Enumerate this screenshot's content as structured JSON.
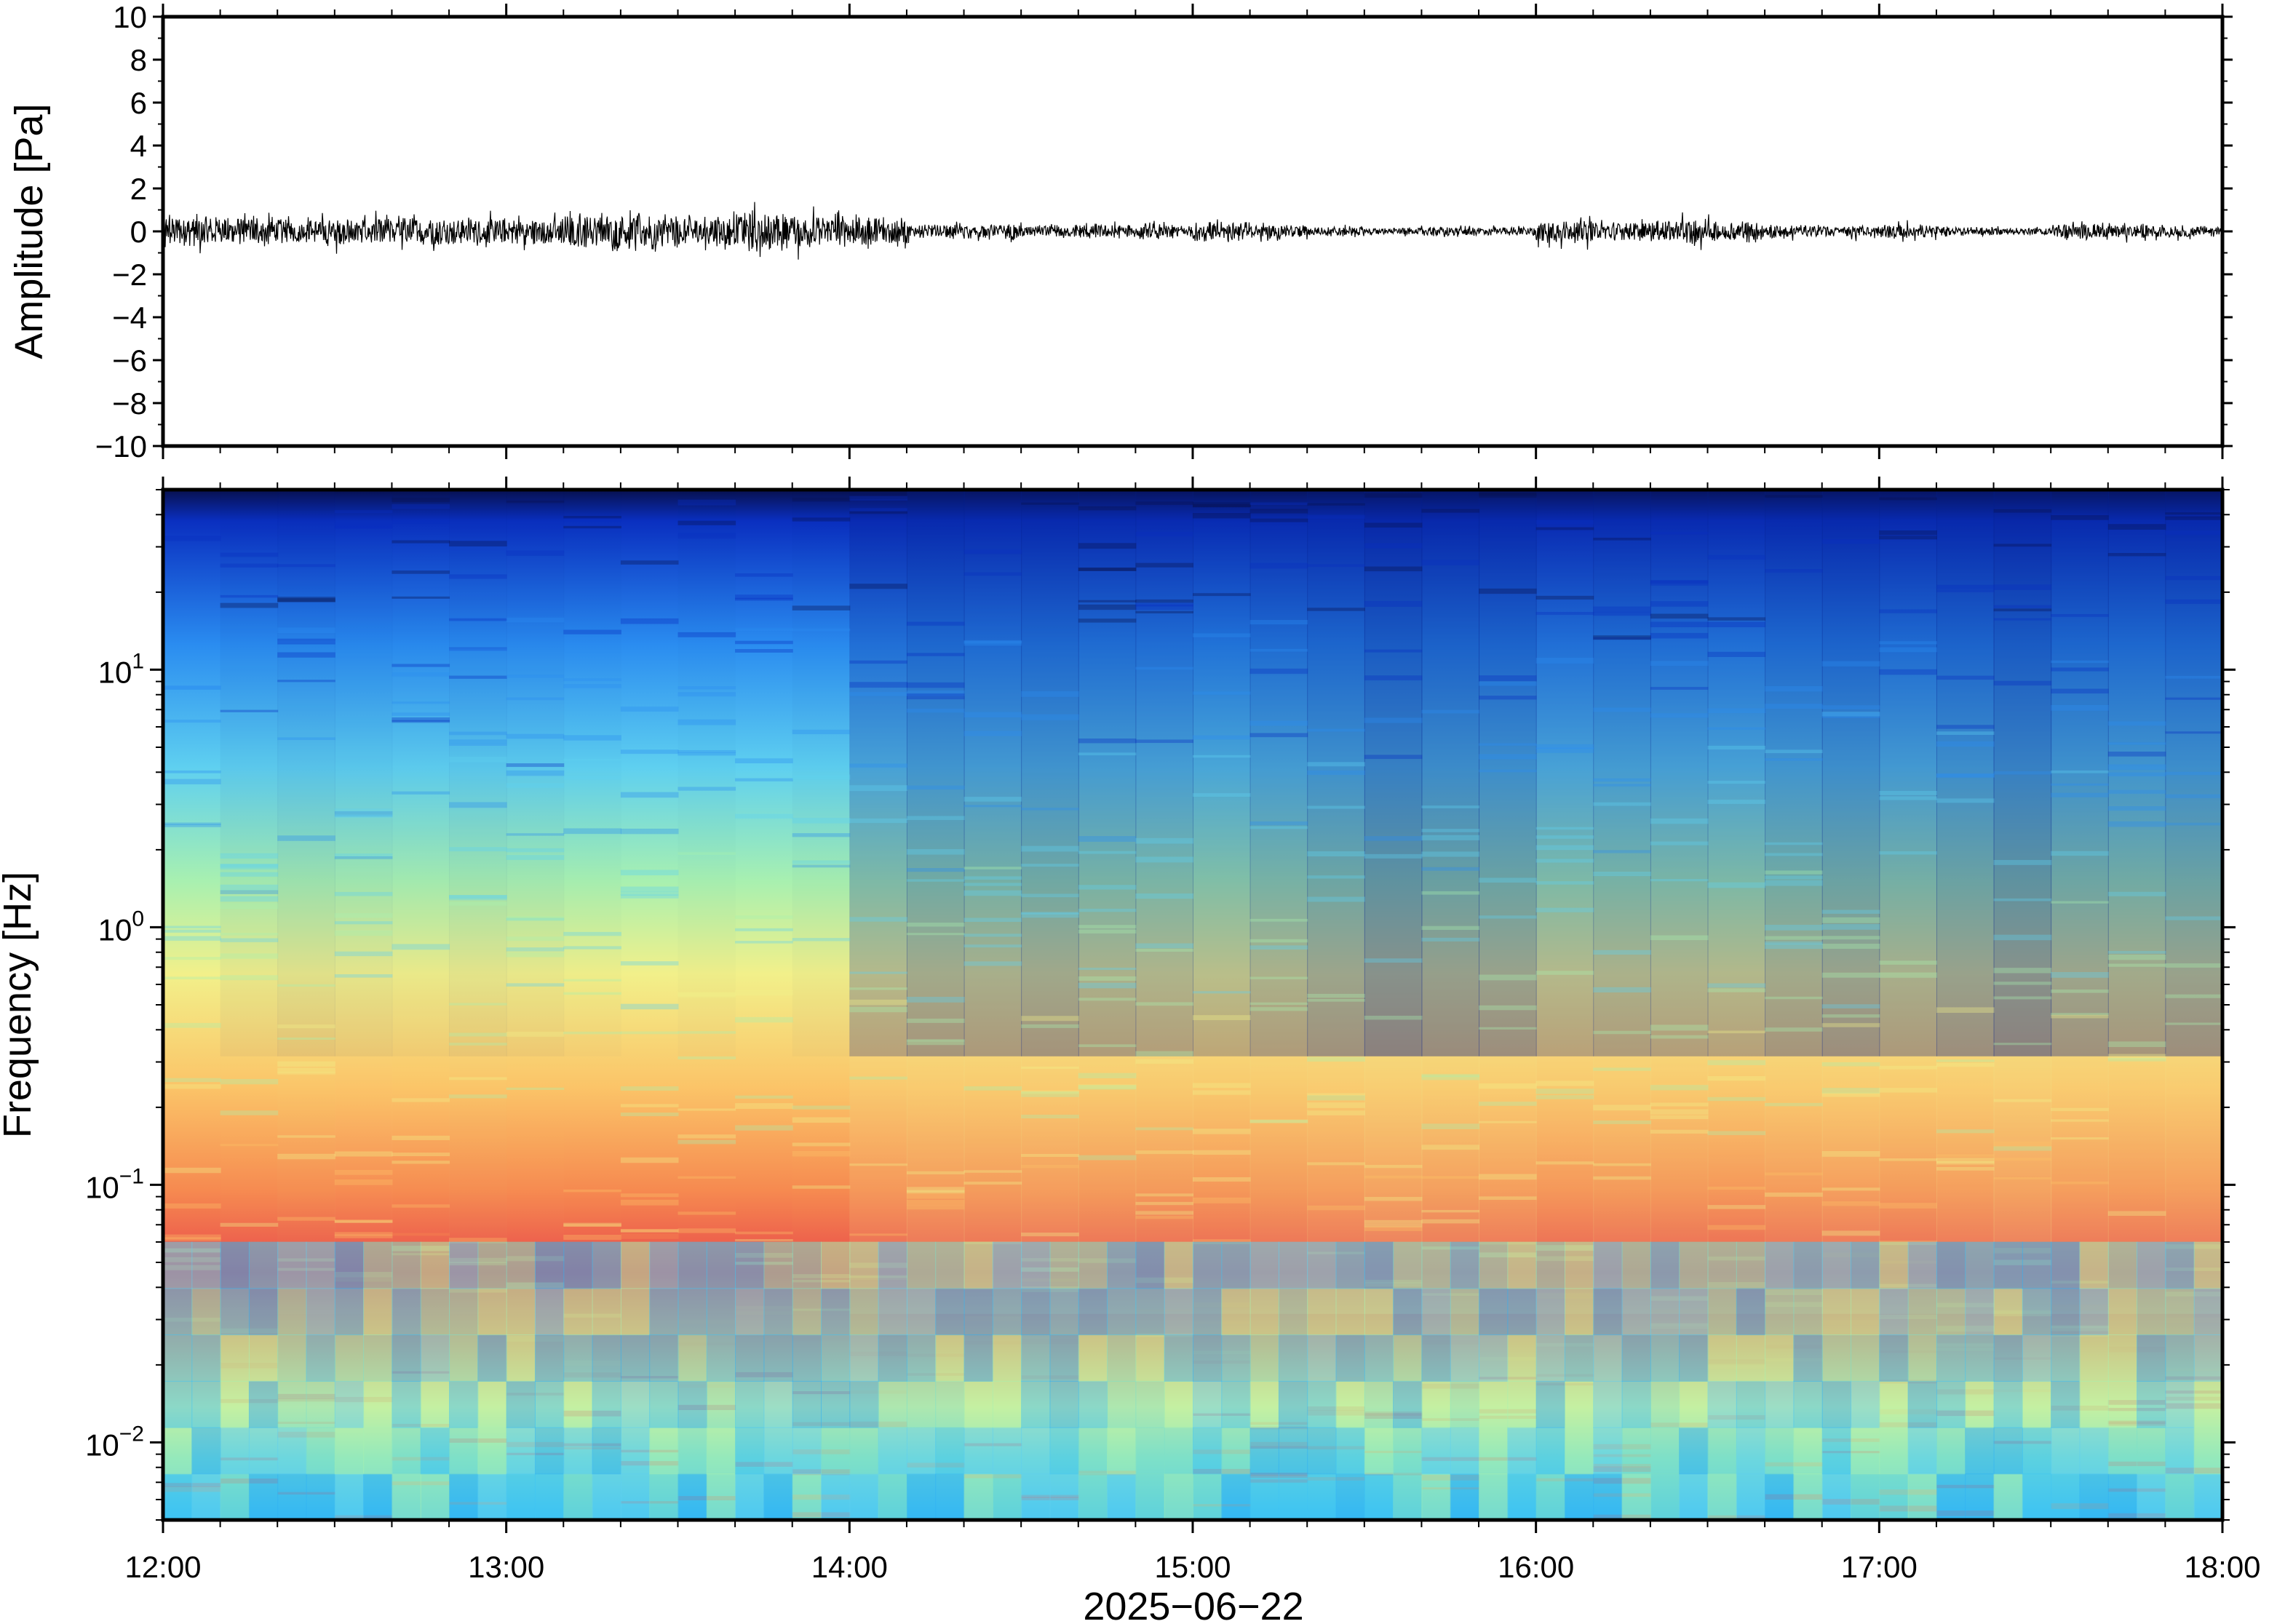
{
  "chart_data": [
    {
      "type": "line",
      "title": "",
      "ylabel": "Amplitude [Pa]",
      "xlabel": "",
      "ylim": [
        -10,
        10
      ],
      "yticks": [
        10,
        8,
        6,
        4,
        2,
        0,
        -2,
        -4,
        -6,
        -8,
        -10
      ],
      "ytick_labels": [
        "10",
        "8",
        "6",
        "4",
        "2",
        "0",
        "−2",
        "−4",
        "−6",
        "−8",
        "−10"
      ],
      "xlim": [
        "2025-06-22 12:00",
        "2025-06-22 18:00"
      ],
      "grid": false,
      "series_color": "#000000",
      "envelope": {
        "note_type": "approximate peak amplitude per 10-minute block",
        "time": [
          "12:00",
          "12:10",
          "12:20",
          "12:30",
          "12:40",
          "12:50",
          "13:00",
          "13:10",
          "13:20",
          "13:30",
          "13:40",
          "13:50",
          "14:00",
          "14:10",
          "14:20",
          "14:30",
          "14:40",
          "14:50",
          "15:00",
          "15:10",
          "15:20",
          "15:30",
          "15:40",
          "15:50",
          "16:00",
          "16:10",
          "16:20",
          "16:30",
          "16:40",
          "16:50",
          "17:00",
          "17:10",
          "17:20",
          "17:30",
          "17:40",
          "17:50"
        ],
        "peak": [
          1.4,
          1.3,
          1.1,
          1.2,
          1.3,
          1.1,
          1.2,
          1.5,
          1.5,
          1.4,
          1.7,
          1.5,
          1.3,
          0.6,
          0.6,
          0.5,
          0.6,
          0.6,
          0.9,
          0.6,
          0.4,
          0.3,
          0.4,
          0.4,
          1.1,
          0.8,
          1.0,
          0.9,
          0.6,
          0.5,
          0.6,
          0.4,
          0.3,
          0.7,
          0.6,
          0.5
        ]
      }
    },
    {
      "type": "heatmap",
      "title": "",
      "ylabel": "Frequency [Hz]",
      "xlabel": "2025−06−22",
      "xlim": [
        "2025-06-22 12:00",
        "2025-06-22 18:00"
      ],
      "xtick_labels": [
        "12:00",
        "13:00",
        "14:00",
        "15:00",
        "16:00",
        "17:00",
        "18:00"
      ],
      "yscale": "log",
      "ylim": [
        0.005,
        50
      ],
      "yticks": [
        0.01,
        0.1,
        1,
        10
      ],
      "ytick_labels": [
        {
          "base": "10",
          "exp": "−2"
        },
        {
          "base": "10",
          "exp": "−1"
        },
        {
          "base": "10",
          "exp": "0"
        },
        {
          "base": "10",
          "exp": "1"
        }
      ],
      "colormap": [
        "#08104e",
        "#0a2fc0",
        "#2a8cf0",
        "#5fd0f0",
        "#a8f0b0",
        "#f2f08a",
        "#fbc468",
        "#f68a50",
        "#e8484a"
      ],
      "grid": false,
      "transition_time": "14:03",
      "time_blocks": [
        "12:00",
        "12:10",
        "12:20",
        "12:30",
        "12:40",
        "12:50",
        "13:00",
        "13:10",
        "13:20",
        "13:30",
        "13:40",
        "13:50",
        "14:00",
        "14:10",
        "14:20",
        "14:30",
        "14:40",
        "14:50",
        "15:00",
        "15:10",
        "15:20",
        "15:30",
        "15:40",
        "15:50",
        "16:00",
        "16:10",
        "16:20",
        "16:30",
        "16:40",
        "16:50",
        "17:00",
        "17:10",
        "17:20",
        "17:30",
        "17:40",
        "17:50"
      ],
      "relative_power": [
        0.92,
        0.85,
        0.8,
        0.83,
        0.86,
        0.82,
        0.85,
        0.88,
        0.9,
        0.88,
        0.9,
        0.87,
        0.55,
        0.45,
        0.48,
        0.44,
        0.5,
        0.52,
        0.58,
        0.5,
        0.42,
        0.3,
        0.38,
        0.4,
        0.55,
        0.5,
        0.52,
        0.54,
        0.45,
        0.4,
        0.48,
        0.4,
        0.3,
        0.42,
        0.45,
        0.4
      ]
    }
  ]
}
